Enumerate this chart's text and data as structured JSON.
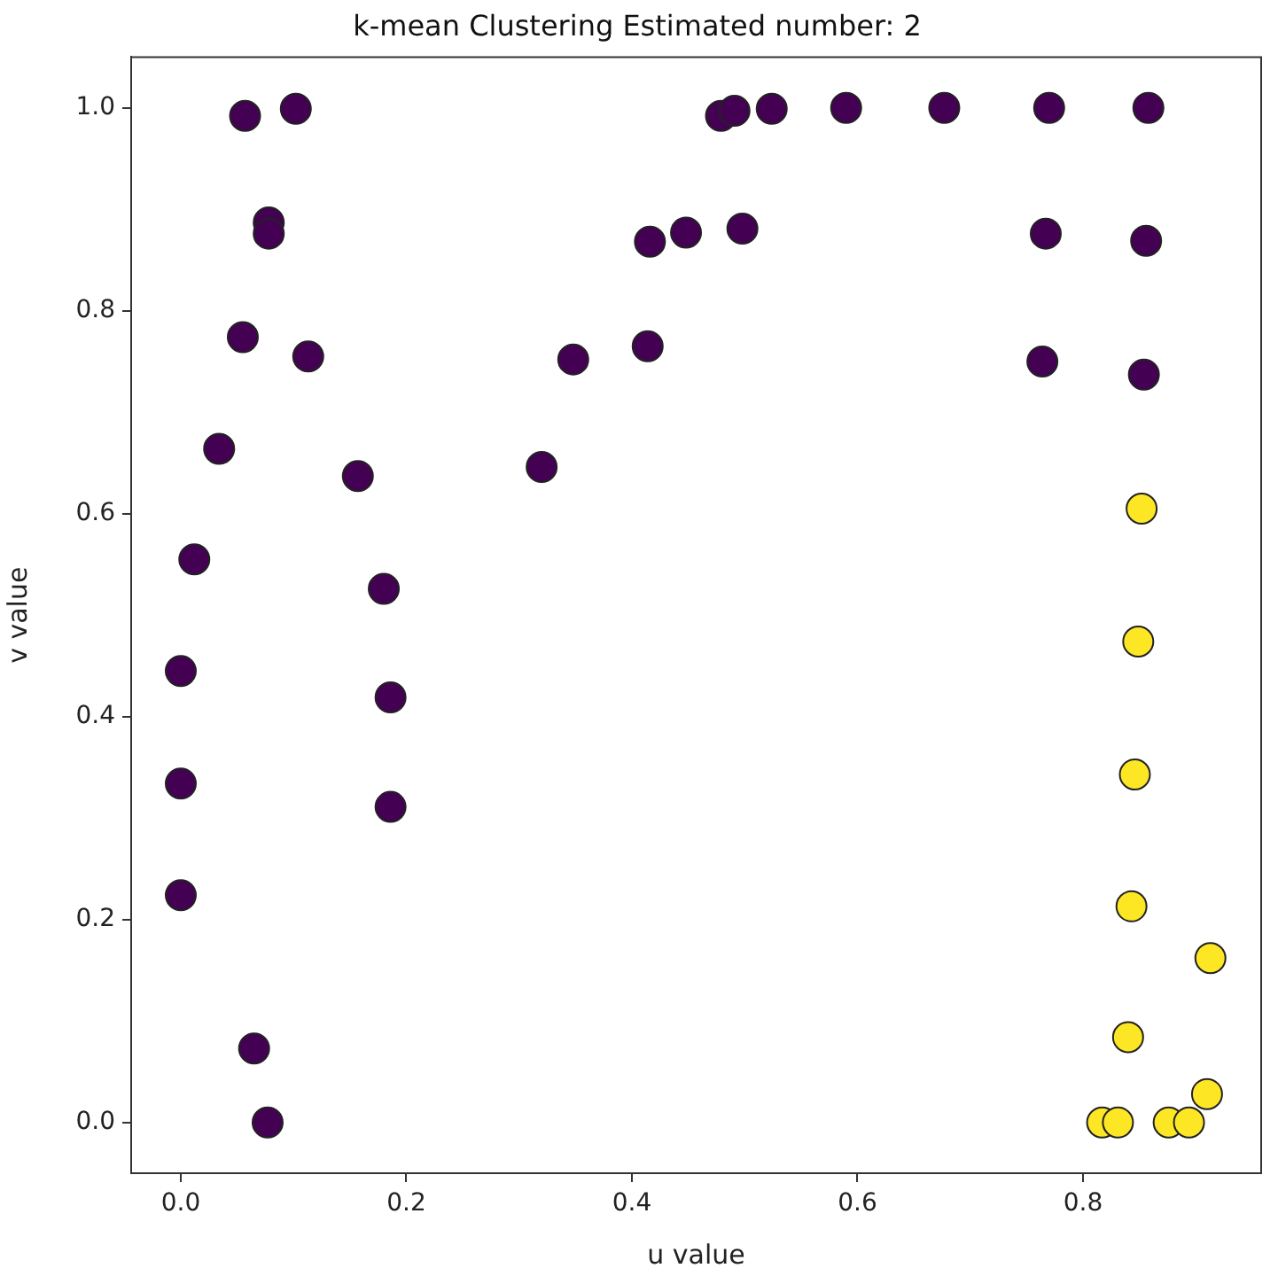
{
  "chart_data": {
    "type": "scatter",
    "title": "k-mean Clustering Estimated number: 2",
    "xlabel": "u value",
    "ylabel": "v value",
    "xlim": [
      -0.044,
      0.958
    ],
    "ylim": [
      -0.05,
      1.05
    ],
    "xticks": [
      {
        "value": 0,
        "label": "0.0"
      },
      0.2,
      0.4,
      0.6,
      0.8
    ],
    "yticks": [
      {
        "value": 0,
        "label": "0.0"
      },
      0.2,
      0.4,
      0.6,
      0.8,
      {
        "value": 1,
        "label": "1.0"
      }
    ],
    "grid": false,
    "legend": false,
    "marker": "circle",
    "series": [
      {
        "color": "#440154",
        "x": [
          0.057,
          0.102,
          0.078,
          0.078,
          0.055,
          0.113,
          0.034,
          0.157,
          0.012,
          0.18,
          0.32,
          0.348,
          0.414,
          0.416,
          0.448,
          0.498,
          0.479,
          0.491,
          0.524,
          0.59,
          0.677,
          0.77,
          0.858,
          0.767,
          0.856,
          0.764,
          0.854,
          0.0,
          0.186,
          0.0,
          0.186,
          0.0,
          0.065,
          0.077
        ],
        "values": [
          0.992,
          0.999,
          0.887,
          0.876,
          0.774,
          0.755,
          0.664,
          0.637,
          0.555,
          0.526,
          0.646,
          0.752,
          0.765,
          0.868,
          0.877,
          0.881,
          0.992,
          0.997,
          0.999,
          1.0,
          1.0,
          1.0,
          1.0,
          0.876,
          0.869,
          0.75,
          0.737,
          0.445,
          0.419,
          0.334,
          0.311,
          0.224,
          0.073,
          0.0
        ]
      },
      {
        "color": "#fde725",
        "x": [
          0.852,
          0.849,
          0.846,
          0.843,
          0.913,
          0.84,
          0.91,
          0.817,
          0.831,
          0.876,
          0.894
        ],
        "values": [
          0.605,
          0.474,
          0.343,
          0.213,
          0.162,
          0.084,
          0.028,
          0.0,
          0.0,
          0.0,
          0.0
        ]
      }
    ]
  }
}
